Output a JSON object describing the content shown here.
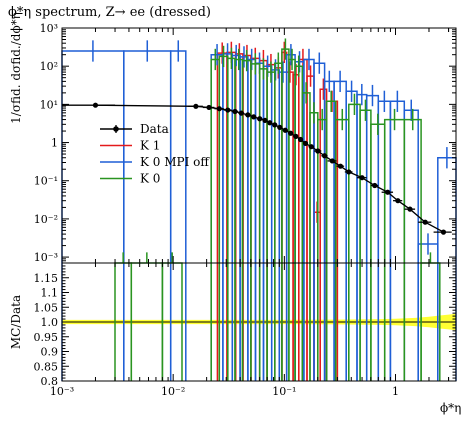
{
  "colors": {
    "data": "#000000",
    "k1": "#e41a1c",
    "k0_mpi_off": "#1f5fd6",
    "k0": "#2a9421",
    "band": "#ffff33"
  },
  "chart_data": [
    {
      "type": "line",
      "title": "ϕ*η spectrum, Z→ ee (dressed)",
      "ylabel": "1/σfid. dσfid./dϕ*η",
      "xscale": "log",
      "yscale": "log",
      "xlim": [
        0.001,
        3.5
      ],
      "ylim": [
        0.0007,
        1000
      ],
      "x_ticks": [
        "10⁻³",
        "10⁻²",
        "10⁻¹",
        "1"
      ],
      "y_ticks": [
        "10⁻³",
        "10⁻²",
        "10⁻¹",
        "1",
        "10¹",
        "10²",
        "10³"
      ],
      "legend_position": "middle-left",
      "series": [
        {
          "name": "Data",
          "x": [
            0.002,
            0.016,
            0.021,
            0.026,
            0.031,
            0.036,
            0.041,
            0.047,
            0.053,
            0.06,
            0.067,
            0.074,
            0.082,
            0.091,
            0.102,
            0.114,
            0.127,
            0.14,
            0.155,
            0.175,
            0.2,
            0.23,
            0.27,
            0.32,
            0.38,
            0.5,
            0.65,
            0.85,
            1.05,
            1.35,
            1.85,
            2.7
          ],
          "xerr": [
            0.001,
            0.0025,
            0.0025,
            0.0025,
            0.0025,
            0.0025,
            0.0025,
            0.003,
            0.003,
            0.0035,
            0.0035,
            0.0035,
            0.004,
            0.0045,
            0.006,
            0.006,
            0.007,
            0.007,
            0.008,
            0.01,
            0.015,
            0.015,
            0.025,
            0.025,
            0.03,
            0.05,
            0.05,
            0.1,
            0.1,
            0.15,
            0.25,
            0.5
          ],
          "y": [
            9.5,
            8.9,
            8.3,
            7.7,
            7.1,
            6.5,
            5.9,
            5.3,
            4.7,
            4.2,
            3.8,
            3.3,
            2.9,
            2.5,
            2.1,
            1.75,
            1.45,
            1.2,
            0.95,
            0.78,
            0.6,
            0.45,
            0.33,
            0.24,
            0.17,
            0.12,
            0.075,
            0.05,
            0.03,
            0.018,
            0.0082,
            0.0045
          ]
        },
        {
          "name": "K 1",
          "values": [
            {
              "lo": 0.025,
              "hi": 0.0305,
              "y": 220
            },
            {
              "lo": 0.0305,
              "hi": 0.0365,
              "y": 230
            },
            {
              "lo": 0.0365,
              "hi": 0.0425,
              "y": 210
            },
            {
              "lo": 0.0425,
              "hi": 0.05,
              "y": 190
            },
            {
              "lo": 0.05,
              "hi": 0.06,
              "y": 160
            },
            {
              "lo": 0.06,
              "hi": 0.07,
              "y": 140
            },
            {
              "lo": 0.07,
              "hi": 0.082,
              "y": 110
            },
            {
              "lo": 0.082,
              "hi": 0.095,
              "y": 90
            },
            {
              "lo": 0.095,
              "hi": 0.105,
              "y": 230
            },
            {
              "lo": 0.105,
              "hi": 0.12,
              "y": 70
            },
            {
              "lo": 0.12,
              "hi": 0.135,
              "y": 60
            },
            {
              "lo": 0.135,
              "hi": 0.16,
              "y": 150
            },
            {
              "lo": 0.16,
              "hi": 0.185,
              "y": 55
            },
            {
              "lo": 0.185,
              "hi": 0.21,
              "y": 0.015
            },
            {
              "lo": 0.21,
              "hi": 0.24,
              "y": 25
            },
            {
              "lo": 0.24,
              "hi": 0.3,
              "y": 12
            }
          ]
        },
        {
          "name": "K 0 MPI off",
          "values": [
            {
              "lo": 0.001,
              "hi": 0.0036,
              "y": 250
            },
            {
              "lo": 0.0036,
              "hi": 0.0095,
              "y": 250
            },
            {
              "lo": 0.0095,
              "hi": 0.013,
              "y": 250
            },
            {
              "lo": 0.022,
              "hi": 0.028,
              "y": 200
            },
            {
              "lo": 0.028,
              "hi": 0.034,
              "y": 210
            },
            {
              "lo": 0.034,
              "hi": 0.04,
              "y": 190
            },
            {
              "lo": 0.04,
              "hi": 0.047,
              "y": 175
            },
            {
              "lo": 0.047,
              "hi": 0.055,
              "y": 150
            },
            {
              "lo": 0.055,
              "hi": 0.065,
              "y": 120
            },
            {
              "lo": 0.065,
              "hi": 0.077,
              "y": 100
            },
            {
              "lo": 0.077,
              "hi": 0.09,
              "y": 80
            },
            {
              "lo": 0.09,
              "hi": 0.105,
              "y": 70
            },
            {
              "lo": 0.105,
              "hi": 0.125,
              "y": 200
            },
            {
              "lo": 0.125,
              "hi": 0.15,
              "y": 130
            },
            {
              "lo": 0.15,
              "hi": 0.185,
              "y": 150
            },
            {
              "lo": 0.185,
              "hi": 0.23,
              "y": 120
            },
            {
              "lo": 0.23,
              "hi": 0.28,
              "y": 40
            },
            {
              "lo": 0.28,
              "hi": 0.36,
              "y": 40
            },
            {
              "lo": 0.36,
              "hi": 0.45,
              "y": 22
            },
            {
              "lo": 0.45,
              "hi": 0.55,
              "y": 18
            },
            {
              "lo": 0.55,
              "hi": 0.7,
              "y": 17
            },
            {
              "lo": 0.7,
              "hi": 0.9,
              "y": 12
            },
            {
              "lo": 0.9,
              "hi": 1.2,
              "y": 12
            },
            {
              "lo": 1.2,
              "hi": 1.6,
              "y": 7
            },
            {
              "lo": 1.6,
              "hi": 2.4,
              "y": 0.0022
            },
            {
              "lo": 2.4,
              "hi": 3.5,
              "y": 0.4
            }
          ]
        },
        {
          "name": "K 0",
          "values": [
            {
              "lo": 0.003,
              "hi": 0.0042,
              "y": 0.0007
            },
            {
              "lo": 0.0042,
              "hi": 0.008,
              "y": 0.0007
            },
            {
              "lo": 0.008,
              "hi": 0.012,
              "y": 0.0007
            },
            {
              "lo": 0.022,
              "hi": 0.026,
              "y": 150
            },
            {
              "lo": 0.026,
              "hi": 0.031,
              "y": 180
            },
            {
              "lo": 0.031,
              "hi": 0.036,
              "y": 160
            },
            {
              "lo": 0.036,
              "hi": 0.042,
              "y": 150
            },
            {
              "lo": 0.042,
              "hi": 0.05,
              "y": 140
            },
            {
              "lo": 0.05,
              "hi": 0.06,
              "y": 115
            },
            {
              "lo": 0.06,
              "hi": 0.07,
              "y": 85
            },
            {
              "lo": 0.07,
              "hi": 0.082,
              "y": 70
            },
            {
              "lo": 0.082,
              "hi": 0.095,
              "y": 120
            },
            {
              "lo": 0.095,
              "hi": 0.11,
              "y": 280
            },
            {
              "lo": 0.11,
              "hi": 0.125,
              "y": 150
            },
            {
              "lo": 0.125,
              "hi": 0.145,
              "y": 100
            },
            {
              "lo": 0.145,
              "hi": 0.17,
              "y": 20
            },
            {
              "lo": 0.17,
              "hi": 0.2,
              "y": 6
            },
            {
              "lo": 0.2,
              "hi": 0.24,
              "y": 4
            },
            {
              "lo": 0.24,
              "hi": 0.29,
              "y": 12
            },
            {
              "lo": 0.29,
              "hi": 0.38,
              "y": 4
            },
            {
              "lo": 0.38,
              "hi": 0.48,
              "y": 10
            },
            {
              "lo": 0.48,
              "hi": 0.6,
              "y": 7
            },
            {
              "lo": 0.6,
              "hi": 0.8,
              "y": 3
            },
            {
              "lo": 0.8,
              "hi": 1.2,
              "y": 4
            },
            {
              "lo": 1.2,
              "hi": 1.7,
              "y": 4
            },
            {
              "lo": 1.7,
              "hi": 2.5,
              "y": 0.0007
            }
          ]
        }
      ]
    },
    {
      "type": "line",
      "xlabel": "ϕ*η",
      "ylabel": "MC/Data",
      "xscale": "log",
      "xlim": [
        0.001,
        3.5
      ],
      "ylim": [
        0.8,
        1.2
      ],
      "x_ticks": [
        "10⁻³",
        "10⁻²",
        "10⁻¹",
        "1"
      ],
      "y_ticks": [
        "0.8",
        "0.85",
        "0.9",
        "0.95",
        "1.0",
        "1.05",
        "1.1",
        "1.15"
      ],
      "band": {
        "x": [
          0.001,
          0.1,
          0.3,
          0.6,
          1.0,
          1.5,
          2.0,
          2.5,
          3.0,
          3.5
        ],
        "low": [
          0.993,
          0.993,
          0.992,
          0.991,
          0.989,
          0.986,
          0.982,
          0.978,
          0.975,
          0.972
        ],
        "high": [
          1.007,
          1.007,
          1.008,
          1.009,
          1.011,
          1.014,
          1.018,
          1.022,
          1.025,
          1.028
        ]
      }
    }
  ]
}
